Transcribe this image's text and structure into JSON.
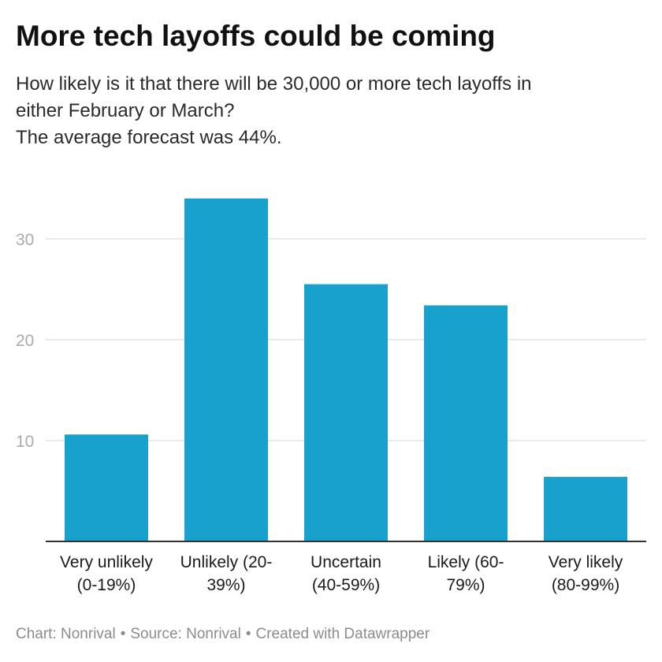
{
  "title": "More tech layoffs could be coming",
  "description": [
    "How likely is it that there will be 30,000 or more tech layoffs in",
    "either February or March?",
    "The average forecast was 44%."
  ],
  "footer": {
    "chart": "Chart: Nonrival",
    "source": "Source: Nonrival",
    "created": "Created with Datawrapper",
    "separator": "•"
  },
  "chart_data": {
    "type": "bar",
    "categories": [
      [
        "Very unlikely",
        "(0-19%)"
      ],
      [
        "Unlikely (20-",
        "39%)"
      ],
      [
        "Uncertain",
        "(40-59%)"
      ],
      [
        "Likely (60-",
        "79%)"
      ],
      [
        "Very likely",
        "(80-99%)"
      ]
    ],
    "values": [
      10.6,
      34.0,
      25.5,
      23.4,
      6.4
    ],
    "ylim": [
      0,
      37
    ],
    "yticks": [
      10,
      20,
      30
    ],
    "grid": true,
    "colors": {
      "bar": "#18a1cd",
      "grid": "#e4e4e4",
      "axis": "#333333",
      "tick_label": "#aaaaaa",
      "category_label": "#1a1a1a"
    }
  }
}
